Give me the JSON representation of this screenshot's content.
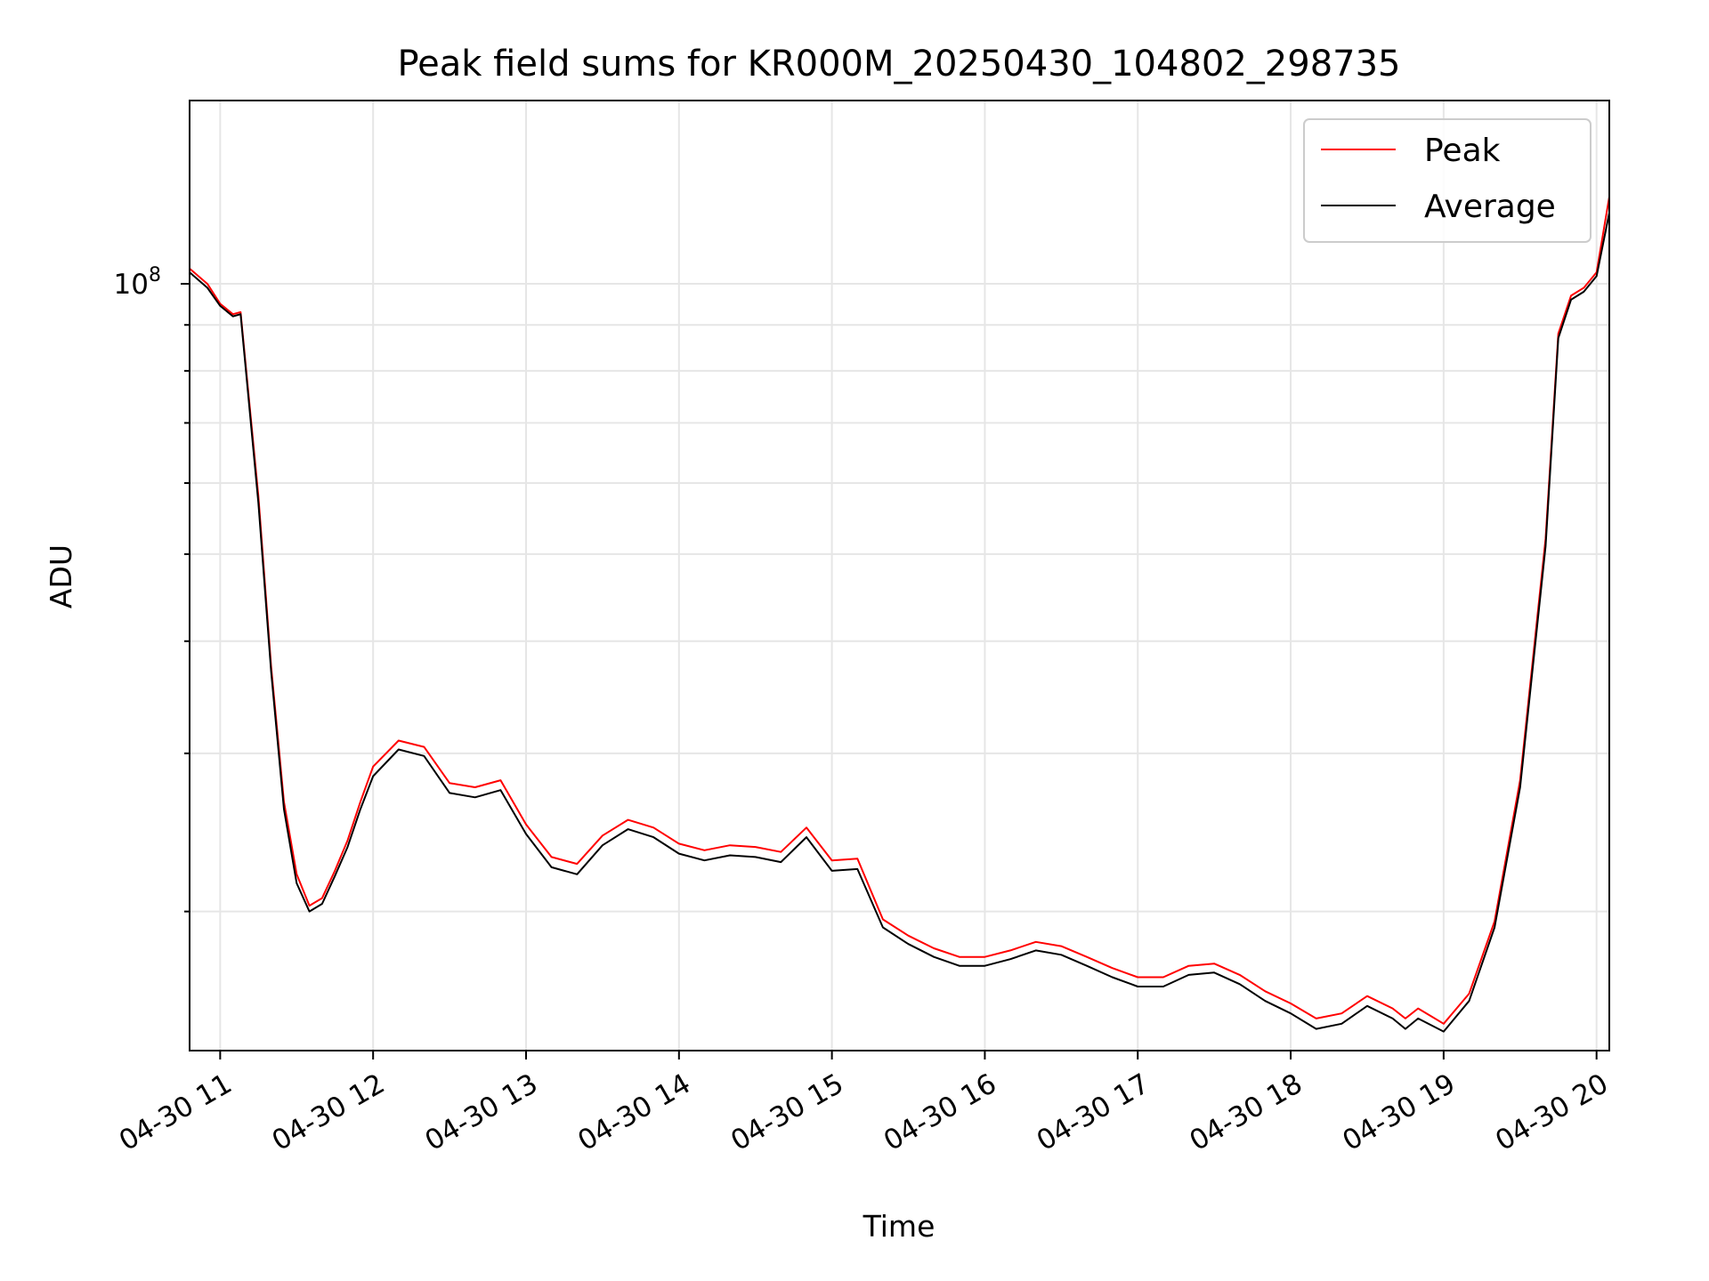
{
  "chart_data": {
    "type": "line",
    "title": "Peak field sums for KR000M_20250430_104802_298735",
    "xlabel": "Time",
    "ylabel": "ADU",
    "x_ticks": [
      "04-30 11",
      "04-30 12",
      "04-30 13",
      "04-30 14",
      "04-30 15",
      "04-30 16",
      "04-30 17",
      "04-30 18",
      "04-30 19",
      "04-30 20"
    ],
    "y_tick_labels": [
      {
        "base": "10",
        "exp": "8"
      }
    ],
    "y_scale": "log",
    "ylim": [
      14000000,
      160000000
    ],
    "xlim": [
      "2025-04-30 10:48",
      "2025-04-30 20:05"
    ],
    "grid": true,
    "legend_position": "top-right",
    "colors": {
      "Peak": "#ff0000",
      "Average": "#000000"
    },
    "x": [
      "10:48",
      "10:55",
      "11:00",
      "11:05",
      "11:08",
      "11:15",
      "11:20",
      "11:25",
      "11:30",
      "11:35",
      "11:40",
      "11:45",
      "11:50",
      "11:55",
      "12:00",
      "12:10",
      "12:20",
      "12:30",
      "12:40",
      "12:50",
      "13:00",
      "13:10",
      "13:20",
      "13:30",
      "13:40",
      "13:50",
      "14:00",
      "14:10",
      "14:20",
      "14:30",
      "14:40",
      "14:50",
      "15:00",
      "15:10",
      "15:20",
      "15:30",
      "15:40",
      "15:50",
      "16:00",
      "16:10",
      "16:20",
      "16:30",
      "16:40",
      "16:50",
      "17:00",
      "17:10",
      "17:20",
      "17:30",
      "17:40",
      "17:50",
      "18:00",
      "18:10",
      "18:20",
      "18:30",
      "18:40",
      "18:45",
      "18:50",
      "19:00",
      "19:10",
      "19:20",
      "19:30",
      "19:40",
      "19:45",
      "19:50",
      "19:55",
      "20:00",
      "20:05"
    ],
    "series": [
      {
        "name": "Peak",
        "values": [
          104000000,
          100000000,
          95000000,
          92500000,
          93000000,
          58000000,
          37500000,
          26500000,
          22000000,
          20300000,
          20700000,
          22200000,
          24000000,
          26500000,
          29000000,
          31000000,
          30500000,
          27800000,
          27500000,
          28000000,
          25000000,
          23000000,
          22600000,
          24300000,
          25300000,
          24800000,
          23800000,
          23400000,
          23700000,
          23600000,
          23300000,
          24800000,
          22800000,
          22900000,
          19600000,
          18800000,
          18200000,
          17800000,
          17800000,
          18100000,
          18500000,
          18300000,
          17800000,
          17300000,
          16900000,
          16900000,
          17400000,
          17500000,
          17000000,
          16300000,
          15800000,
          15200000,
          15400000,
          16100000,
          15600000,
          15200000,
          15600000,
          15000000,
          16200000,
          19500000,
          28000000,
          52000000,
          88000000,
          97000000,
          99000000,
          103000000,
          125000000
        ]
      },
      {
        "name": "Average",
        "values": [
          103000000,
          99000000,
          94500000,
          92000000,
          92500000,
          57000000,
          37000000,
          26000000,
          21500000,
          20000000,
          20400000,
          21900000,
          23600000,
          26000000,
          28300000,
          30300000,
          29800000,
          27100000,
          26800000,
          27300000,
          24400000,
          22400000,
          22000000,
          23700000,
          24700000,
          24200000,
          23200000,
          22800000,
          23100000,
          23000000,
          22700000,
          24200000,
          22200000,
          22300000,
          19200000,
          18400000,
          17800000,
          17400000,
          17400000,
          17700000,
          18100000,
          17900000,
          17400000,
          16900000,
          16500000,
          16500000,
          17000000,
          17100000,
          16600000,
          15900000,
          15400000,
          14800000,
          15000000,
          15700000,
          15200000,
          14800000,
          15200000,
          14700000,
          15900000,
          19200000,
          27500000,
          51000000,
          87000000,
          96000000,
          98000000,
          102000000,
          120000000
        ]
      }
    ]
  }
}
